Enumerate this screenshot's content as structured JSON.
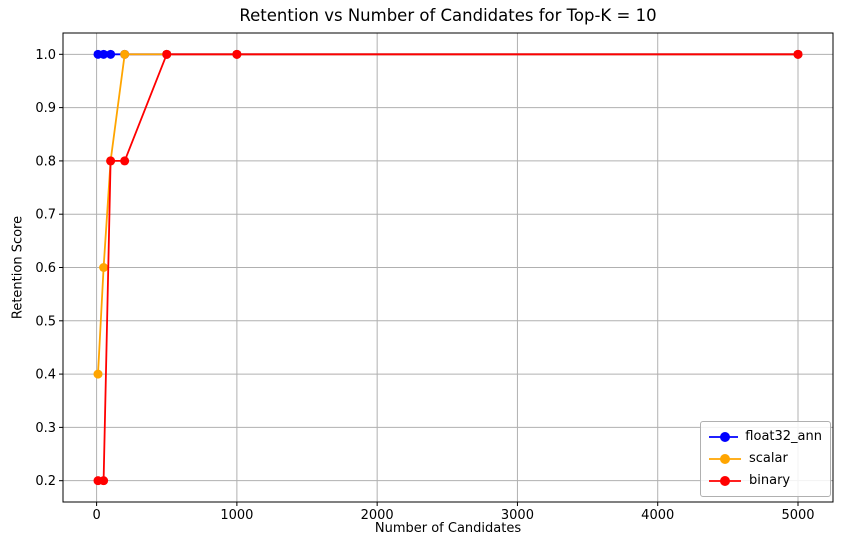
{
  "chart_data": {
    "type": "line",
    "title": "Retention vs Number of Candidates for Top-K = 10",
    "xlabel": "Number of Candidates",
    "ylabel": "Retention Score",
    "x": [
      10,
      50,
      100,
      200,
      500,
      1000,
      5000
    ],
    "series": [
      {
        "name": "float32_ann",
        "color": "#0000ff",
        "values": [
          1.0,
          1.0,
          1.0,
          1.0,
          1.0,
          1.0,
          1.0
        ]
      },
      {
        "name": "scalar",
        "color": "#ffa500",
        "values": [
          0.4,
          0.6,
          0.8,
          1.0,
          1.0,
          1.0,
          1.0
        ]
      },
      {
        "name": "binary",
        "color": "#ff0000",
        "values": [
          0.2,
          0.2,
          0.8,
          0.8,
          1.0,
          1.0,
          1.0
        ]
      }
    ],
    "x_ticks": [
      0,
      1000,
      2000,
      3000,
      4000,
      5000
    ],
    "y_ticks": [
      0.2,
      0.3,
      0.4,
      0.5,
      0.6,
      0.7,
      0.8,
      0.9,
      1.0
    ],
    "xlim": [
      -239.5,
      5249.5
    ],
    "ylim": [
      0.16,
      1.04
    ],
    "grid": true,
    "grid_color": "#b0b0b0",
    "spine_color": "#000000",
    "legend_position": "lower right",
    "marker": "o"
  }
}
